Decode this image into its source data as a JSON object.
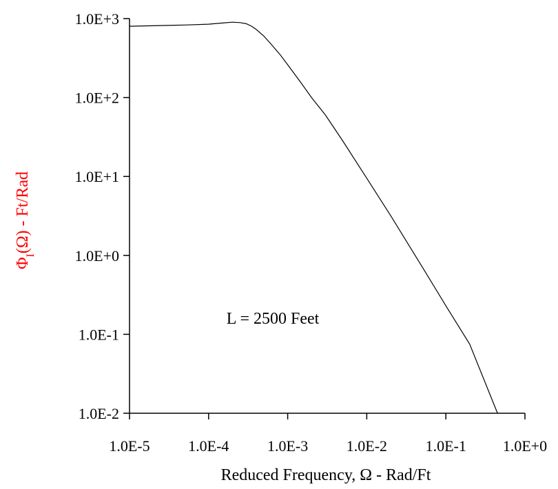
{
  "chart_data": {
    "type": "line",
    "x_scale": "log",
    "y_scale": "log",
    "xlim": [
      1e-05,
      1
    ],
    "ylim": [
      0.01,
      1000
    ],
    "x_ticks": [
      1e-05,
      0.0001,
      0.001,
      0.01,
      0.1,
      1
    ],
    "x_tick_labels": [
      "1.0E-5",
      "1.0E-4",
      "1.0E-3",
      "1.0E-2",
      "1.0E-1",
      "1.0E+0"
    ],
    "y_ticks": [
      0.01,
      0.1,
      1,
      10,
      100,
      1000
    ],
    "y_tick_labels": [
      "1.0E-2",
      "1.0E-1",
      "1.0E+0",
      "1.0E+1",
      "1.0E+2",
      "1.0E+3"
    ],
    "xlabel": "Reduced Frequency, Ω -  Rad/Ft",
    "ylabel": {
      "main": "Φ",
      "subscript": "I",
      "rest": "(Ω) - Ft/Rad",
      "color": "#ff0000"
    },
    "grid": false,
    "annotation": "L = 2500 Feet",
    "series": [
      {
        "color": "#000000",
        "x": [
          1e-05,
          5e-05,
          0.0001,
          0.00015,
          0.0002,
          0.00025,
          0.0003,
          0.00035,
          0.0004,
          0.0005,
          0.0006,
          0.0008,
          0.001,
          0.0015,
          0.002,
          0.003,
          0.005,
          0.01,
          0.02,
          0.05,
          0.1,
          0.2,
          0.45
        ],
        "y": [
          800,
          830,
          850,
          880,
          900,
          890,
          860,
          800,
          730,
          600,
          490,
          350,
          260,
          150,
          100,
          60,
          28,
          9.5,
          3.2,
          0.72,
          0.23,
          0.075,
          0.01
        ]
      }
    ]
  }
}
